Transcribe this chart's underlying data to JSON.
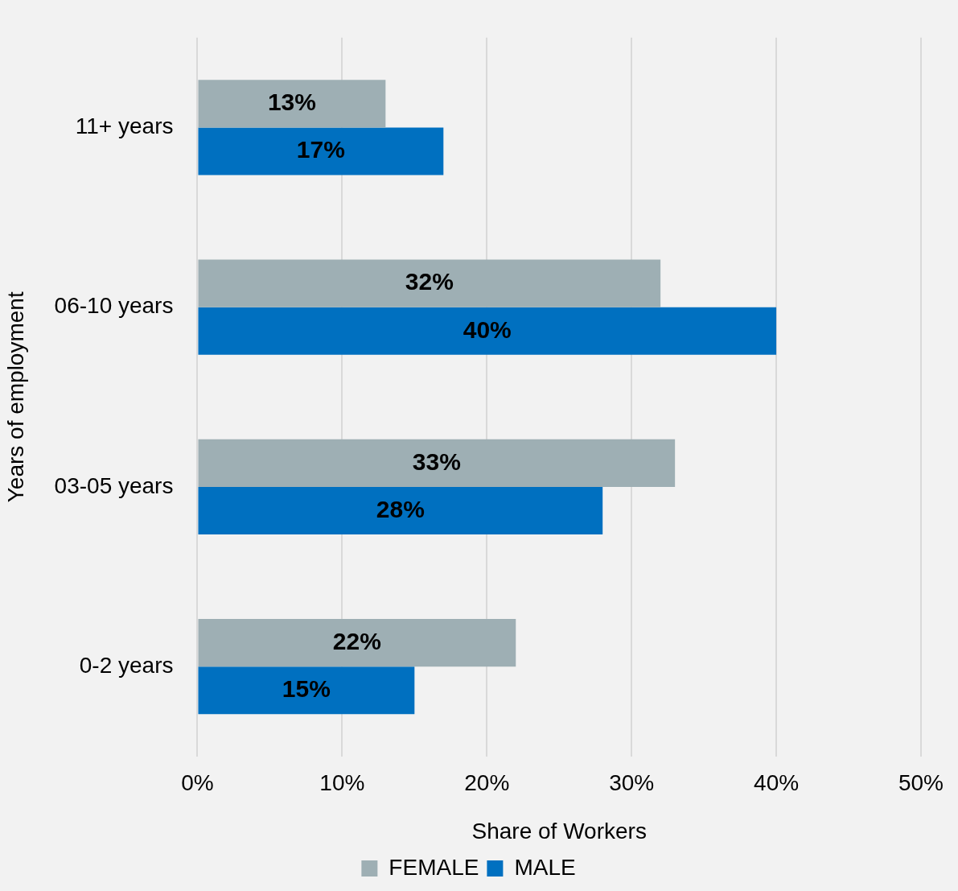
{
  "chart_data": {
    "type": "bar",
    "orientation": "horizontal",
    "xlabel": "Share of Workers",
    "ylabel": "Years of employment",
    "categories": [
      "11+ years",
      "06-10 years",
      "03-05 years",
      "0-2 years"
    ],
    "series": [
      {
        "name": "FEMALE",
        "color": "#9eafb4",
        "values": [
          13,
          32,
          33,
          22
        ],
        "value_labels": [
          "13%",
          "32%",
          "33%",
          "22%"
        ]
      },
      {
        "name": "MALE",
        "color": "#0070c0",
        "values": [
          17,
          40,
          28,
          15
        ],
        "value_labels": [
          "17%",
          "40%",
          "28%",
          "15%"
        ]
      }
    ],
    "xlim": [
      0,
      50
    ],
    "xticks": [
      {
        "value": 0,
        "label": "0%"
      },
      {
        "value": 10,
        "label": "10%"
      },
      {
        "value": 20,
        "label": "20%"
      },
      {
        "value": 30,
        "label": "30%"
      },
      {
        "value": 40,
        "label": "40%"
      },
      {
        "value": 50,
        "label": "50%"
      }
    ],
    "grid": "x",
    "legend": "bottom"
  }
}
